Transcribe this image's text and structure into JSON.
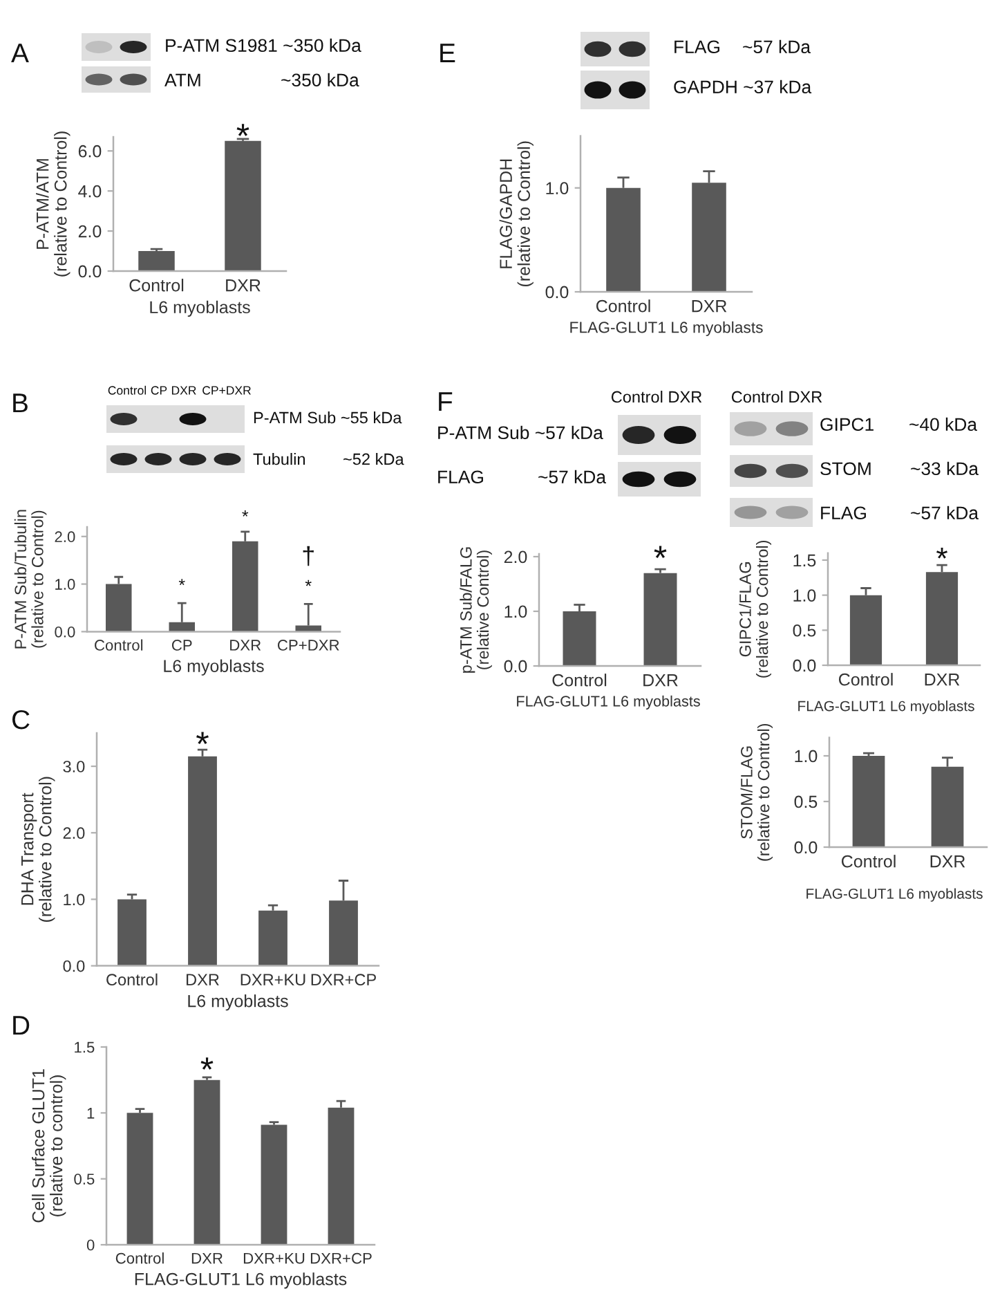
{
  "chart_data": [
    {
      "type": "bar",
      "title": "A",
      "categories": [
        "Control",
        "DXR"
      ],
      "values": [
        1.0,
        6.5
      ],
      "color": "#595959",
      "errors": [
        [
          1.0,
          1.1
        ],
        [
          6.5,
          6.6
        ]
      ],
      "ylim": [
        0,
        6.7
      ],
      "yticks": [
        {
          "value": 0,
          "label": "0.0"
        },
        {
          "value": 2,
          "label": "2.0"
        },
        {
          "value": 4,
          "label": "4.0"
        },
        {
          "value": 6,
          "label": "6.0"
        }
      ],
      "ylabel": "P-ATM/ATM\n(relative to Control)",
      "xlabel": "L6 myoblasts",
      "annotations": [
        "P-ATM S1981 ~350 kDa",
        "ATM",
        "~350 kDa",
        {
          "text": "*",
          "x": "DXR",
          "y": 6.6
        }
      ]
    },
    {
      "type": "bar",
      "title": "B",
      "categories": [
        "Control",
        "CP",
        "DXR",
        "CP+DXR"
      ],
      "values": [
        1.0,
        0.2,
        1.9,
        0.13
      ],
      "color": "#595959",
      "errors": [
        [
          1.0,
          1.15
        ],
        [
          0.2,
          0.6
        ],
        [
          1.9,
          2.1
        ],
        [
          0.13,
          0.58
        ]
      ],
      "ylim": [
        0,
        2.2
      ],
      "yticks": [
        {
          "value": 0,
          "label": "0.0"
        },
        {
          "value": 1,
          "label": "1.0"
        },
        {
          "value": 2,
          "label": "2.0"
        }
      ],
      "ylabel": "P-ATM Sub/Tubulin\n(relative to Control)",
      "xlabel": "L6 myoblasts",
      "annotations": [
        "Control",
        "CP",
        "DXR",
        "CP+DXR",
        "P-ATM Sub ~55 kDa",
        "Tubulin",
        "~52 kDa",
        {
          "text": "*",
          "x": "CP",
          "y": 0.6
        },
        {
          "text": "*",
          "x": "DXR",
          "y": 2.1
        },
        {
          "text": "*",
          "x": "CP+DXR",
          "y": 0.58
        },
        {
          "text": "†",
          "x": "CP+DXR",
          "y": 0.58
        }
      ]
    },
    {
      "type": "bar",
      "title": "C",
      "categories": [
        "Control",
        "DXR",
        "DXR+KU",
        "DXR+CP"
      ],
      "values": [
        1.0,
        3.15,
        0.83,
        0.98
      ],
      "color": "#595959",
      "errors": [
        [
          1.0,
          1.07
        ],
        [
          3.15,
          3.25
        ],
        [
          0.83,
          0.91
        ],
        [
          0.98,
          1.28
        ]
      ],
      "ylim": [
        0,
        3.5
      ],
      "yticks": [
        {
          "value": 0,
          "label": "0.0"
        },
        {
          "value": 1,
          "label": "1.0"
        },
        {
          "value": 2,
          "label": "2.0"
        },
        {
          "value": 3,
          "label": "3.0"
        }
      ],
      "ylabel": "DHA Transport\n(relative to Control)",
      "xlabel": "L6 myoblasts",
      "annotations": [
        {
          "text": "*",
          "x": "DXR",
          "y": 3.25
        }
      ]
    },
    {
      "type": "bar",
      "title": "D",
      "categories": [
        "Control",
        "DXR",
        "DXR+KU",
        "DXR+CP"
      ],
      "values": [
        1.0,
        1.25,
        0.91,
        1.04
      ],
      "color": "#595959",
      "errors": [
        [
          1.0,
          1.03
        ],
        [
          1.25,
          1.27
        ],
        [
          0.91,
          0.93
        ],
        [
          1.04,
          1.09
        ]
      ],
      "ylim": [
        0,
        1.5
      ],
      "yticks": [
        0,
        0.5,
        1,
        1.5
      ],
      "ylabel": "Cell Surface GLUT1\n(relative to control)",
      "xlabel": "FLAG-GLUT1 L6 myoblasts",
      "annotations": [
        {
          "text": "*",
          "x": "DXR",
          "y": 1.27
        }
      ]
    },
    {
      "type": "bar",
      "title": "E",
      "categories": [
        "Control",
        "DXR"
      ],
      "values": [
        1.0,
        1.05
      ],
      "color": "#595959",
      "errors": [
        [
          1.0,
          1.1
        ],
        [
          1.05,
          1.16
        ]
      ],
      "ylim": [
        0,
        1.5
      ],
      "yticks": [
        {
          "value": 0,
          "label": "0.0"
        },
        {
          "value": 1,
          "label": "1.0"
        }
      ],
      "ylabel": "FLAG/GAPDH\n(relative to Control)",
      "xlabel": "FLAG-GLUT1 L6 myoblasts",
      "annotations": [
        "FLAG",
        "~57 kDa",
        "GAPDH ~37 kDa"
      ]
    },
    {
      "type": "bar",
      "title": "F",
      "categories": [
        "Control",
        "DXR"
      ],
      "values": [
        1.0,
        1.7
      ],
      "color": "#595959",
      "errors": [
        [
          1.0,
          1.12
        ],
        [
          1.7,
          1.77
        ]
      ],
      "ylim": [
        0,
        2.05
      ],
      "yticks": [
        {
          "value": 0,
          "label": "0.0"
        },
        {
          "value": 1,
          "label": "1.0"
        },
        {
          "value": 2,
          "label": "2.0"
        }
      ],
      "ylabel": "p-ATM Sub/FALG\n(relative Control)",
      "xlabel": "FLAG-GLUT1 L6 myoblasts",
      "annotations": [
        "Control DXR",
        "P-ATM Sub ~57 kDa",
        "FLAG",
        "~57 kDa",
        {
          "text": "*",
          "x": "DXR",
          "y": 1.77
        }
      ]
    },
    {
      "type": "bar",
      "categories": [
        "Control",
        "DXR"
      ],
      "values": [
        1.0,
        1.33
      ],
      "color": "#595959",
      "errors": [
        [
          1.0,
          1.1
        ],
        [
          1.33,
          1.43
        ]
      ],
      "ylim": [
        0,
        1.6
      ],
      "yticks": [
        {
          "value": 0,
          "label": "0.0"
        },
        {
          "value": 0.5,
          "label": "0.5"
        },
        {
          "value": 1,
          "label": "1.0"
        },
        {
          "value": 1.5,
          "label": "1.5"
        }
      ],
      "ylabel": "GIPC1/FLAG\n(relative to Control)",
      "xlabel": "FLAG-GLUT1 L6 myoblasts",
      "annotations": [
        "Control DXR",
        "GIPC1",
        "~40 kDa",
        "STOM",
        "~33 kDa",
        "FLAG",
        "~57 kDa",
        {
          "text": "*",
          "x": "DXR",
          "y": 1.43
        }
      ]
    },
    {
      "type": "bar",
      "categories": [
        "Control",
        "DXR"
      ],
      "values": [
        1.0,
        0.88
      ],
      "color": "#595959",
      "errors": [
        [
          1.0,
          1.03
        ],
        [
          0.88,
          0.98
        ]
      ],
      "ylim": [
        0,
        1.2
      ],
      "yticks": [
        {
          "value": 0,
          "label": "0.0"
        },
        {
          "value": 0.5,
          "label": "0.5"
        },
        {
          "value": 1,
          "label": "1.0"
        }
      ],
      "ylabel": "STOM/FLAG\n(relative to Control)",
      "xlabel": "FLAG-GLUT1 L6 myoblasts"
    }
  ]
}
